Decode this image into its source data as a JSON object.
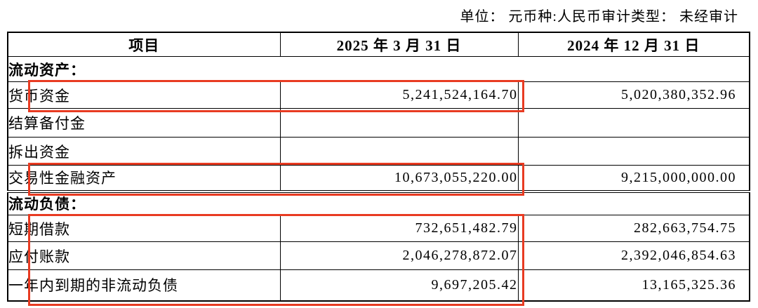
{
  "annotation": {
    "text": "单位： 元币种:人民币审计类型： 未经审计"
  },
  "table": {
    "headers": [
      "项目",
      "2025 年 3 月 31 日",
      "2024 年 12 月 31 日"
    ],
    "rows": [
      {
        "type": "section",
        "label": "流动资产："
      },
      {
        "type": "item",
        "label": "货币资金",
        "v2025": "5,241,524,164.70",
        "v2024": "5,020,380,352.96",
        "highlight": true
      },
      {
        "type": "item",
        "label": "结算备付金",
        "v2025": "",
        "v2024": ""
      },
      {
        "type": "item",
        "label": "拆出资金",
        "v2025": "",
        "v2024": ""
      },
      {
        "type": "item",
        "label": "交易性金融资产",
        "v2025": "10,673,055,220.00",
        "v2024": "9,215,000,000.00",
        "highlight": true,
        "section_end": true
      },
      {
        "type": "section",
        "label": "流动负债："
      },
      {
        "type": "item",
        "label": "短期借款",
        "v2025": "732,651,482.79",
        "v2024": "282,663,754.75",
        "highlight": true
      },
      {
        "type": "item",
        "label": "应付账款",
        "v2025": "2,046,278,872.07",
        "v2024": "2,392,046,854.63",
        "highlight": true
      },
      {
        "type": "item",
        "label": "一年内到期的非流动负债",
        "v2025": "9,697,205.42",
        "v2024": "13,165,325.36",
        "highlight": true
      }
    ]
  },
  "colors": {
    "highlight_border": "#e83b22",
    "table_border": "#000000"
  }
}
